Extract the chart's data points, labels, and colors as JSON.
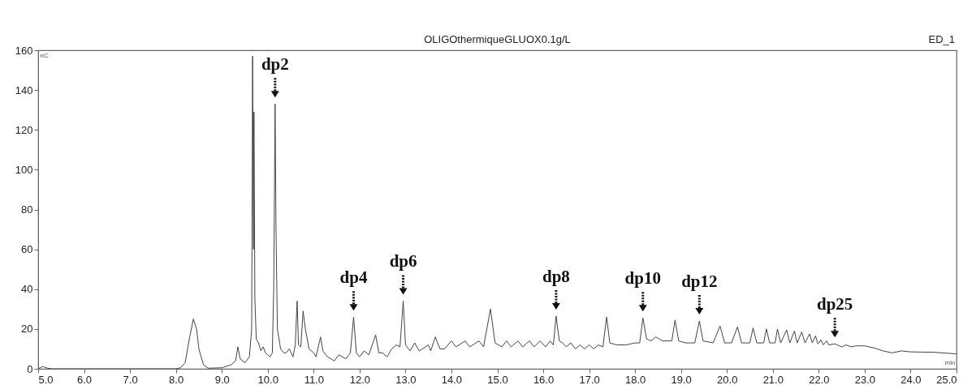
{
  "chart_data": {
    "type": "line",
    "title": "OLIGOthermiqueGLUOX0.1g/L",
    "xlabel": "min",
    "ylabel": "nC",
    "xlim": [
      5,
      25
    ],
    "ylim": [
      0,
      160
    ],
    "xticks": [
      {
        "value": 5,
        "label": "5.0"
      },
      {
        "value": 6,
        "label": "6.0"
      },
      {
        "value": 7,
        "label": "7.0"
      },
      {
        "value": 8,
        "label": "8.0"
      },
      {
        "value": 9,
        "label": "9.0"
      },
      {
        "value": 10,
        "label": "10.0"
      },
      {
        "value": 11,
        "label": "11.0"
      },
      {
        "value": 12,
        "label": "12.0"
      },
      {
        "value": 13,
        "label": "13.0"
      },
      {
        "value": 14,
        "label": "14.0"
      },
      {
        "value": 15,
        "label": "15.0"
      },
      {
        "value": 16,
        "label": "16.0"
      },
      {
        "value": 17,
        "label": "17.0"
      },
      {
        "value": 18,
        "label": "18.0"
      },
      {
        "value": 19,
        "label": "19.0"
      },
      {
        "value": 20,
        "label": "20.0"
      },
      {
        "value": 21,
        "label": "21.0"
      },
      {
        "value": 22,
        "label": "22.0"
      },
      {
        "value": 23,
        "label": "23.0"
      },
      {
        "value": 24,
        "label": "24.0"
      },
      {
        "value": 25,
        "label": "25.0"
      }
    ],
    "yticks": [
      0,
      20,
      40,
      60,
      80,
      100,
      120,
      140,
      160
    ],
    "grid": false,
    "marker": "none",
    "line_style": "solid",
    "annotations": [
      {
        "text": "dp2",
        "x": 10.16,
        "y": 133
      },
      {
        "text": "dp4",
        "x": 11.87,
        "y": 26
      },
      {
        "text": "dp6",
        "x": 12.95,
        "y": 34
      },
      {
        "text": "dp8",
        "x": 16.28,
        "y": 26.5
      },
      {
        "text": "dp10",
        "x": 18.17,
        "y": 25.5
      },
      {
        "text": "dp12",
        "x": 19.4,
        "y": 24
      },
      {
        "text": "dp25",
        "x": 22.35,
        "y": 12.5
      },
      "ED_1"
    ],
    "series": [
      {
        "color": "#444444",
        "x": [
          5.0,
          5.1,
          5.2,
          5.3,
          8.0,
          8.1,
          8.2,
          8.3,
          8.38,
          8.45,
          8.5,
          8.6,
          8.7,
          9.0,
          9.2,
          9.3,
          9.35,
          9.4,
          9.5,
          9.6,
          9.65,
          9.67,
          9.69,
          9.7,
          9.72,
          9.75,
          9.8,
          9.85,
          9.9,
          9.95,
          10.0,
          10.05,
          10.1,
          10.13,
          10.16,
          10.18,
          10.21,
          10.28,
          10.35,
          10.4,
          10.47,
          10.55,
          10.6,
          10.64,
          10.67,
          10.72,
          10.77,
          10.82,
          10.9,
          11.0,
          11.05,
          11.15,
          11.2,
          11.3,
          11.45,
          11.55,
          11.7,
          11.8,
          11.87,
          11.93,
          12.0,
          12.1,
          12.2,
          12.35,
          12.42,
          12.5,
          12.6,
          12.7,
          12.8,
          12.88,
          12.95,
          13.0,
          13.1,
          13.2,
          13.3,
          13.5,
          13.55,
          13.65,
          13.75,
          13.85,
          14.0,
          14.1,
          14.3,
          14.4,
          14.6,
          14.7,
          14.85,
          14.95,
          15.1,
          15.2,
          15.3,
          15.45,
          15.55,
          15.7,
          15.8,
          15.93,
          16.05,
          16.15,
          16.22,
          16.28,
          16.35,
          16.42,
          16.5,
          16.6,
          16.7,
          16.8,
          16.9,
          17.0,
          17.1,
          17.2,
          17.3,
          17.38,
          17.45,
          17.6,
          17.8,
          18.0,
          18.1,
          18.17,
          18.25,
          18.35,
          18.45,
          18.6,
          18.8,
          18.87,
          18.95,
          19.1,
          19.3,
          19.4,
          19.48,
          19.7,
          19.85,
          19.95,
          20.1,
          20.23,
          20.32,
          20.5,
          20.57,
          20.65,
          20.8,
          20.86,
          20.93,
          21.05,
          21.1,
          21.17,
          21.3,
          21.37,
          21.47,
          21.53,
          21.63,
          21.7,
          21.8,
          21.86,
          21.93,
          21.98,
          22.05,
          22.1,
          22.17,
          22.22,
          22.35,
          22.5,
          22.6,
          22.7,
          22.8,
          23.0,
          23.2,
          23.4,
          23.6,
          23.8,
          24.0,
          24.5,
          25.0
        ],
        "values": [
          0,
          1.2,
          0.3,
          0,
          0,
          0.5,
          3,
          16,
          25,
          20,
          10,
          2,
          0.3,
          0.5,
          2,
          4,
          11,
          5,
          3,
          6,
          20,
          157,
          60,
          129,
          35,
          15,
          13,
          9,
          11,
          8,
          7,
          6,
          8,
          40,
          133,
          70,
          20,
          10,
          8,
          8,
          10,
          6,
          12,
          34,
          12,
          11,
          29,
          20,
          10,
          8,
          6,
          16,
          9,
          6,
          4,
          7,
          5,
          8,
          26,
          8,
          6,
          9,
          7,
          17,
          8,
          8,
          6,
          10,
          12,
          11,
          34,
          12,
          9,
          13,
          9,
          12,
          9,
          16,
          10,
          10,
          14,
          11,
          14,
          11,
          14,
          11,
          30,
          13,
          11,
          14,
          11,
          14,
          11,
          14,
          11,
          14,
          11,
          14,
          12,
          26.5,
          14,
          13,
          11,
          13,
          10,
          12,
          10,
          12,
          10,
          12,
          11,
          26,
          13,
          12,
          12,
          13,
          13,
          25.5,
          15,
          14,
          16,
          14,
          14,
          24.5,
          14,
          13,
          13,
          24,
          14,
          13,
          21.5,
          13,
          13,
          21,
          13,
          13,
          20.5,
          13,
          13,
          20,
          13,
          13,
          20,
          13,
          19.5,
          13,
          19,
          13,
          18.5,
          13,
          17.5,
          13,
          16.5,
          12.5,
          14.5,
          12,
          14,
          12,
          12.5,
          11,
          12,
          11,
          11.5,
          11.5,
          10.5,
          9,
          8,
          9,
          8.5,
          8.3,
          7.5
        ]
      }
    ]
  }
}
